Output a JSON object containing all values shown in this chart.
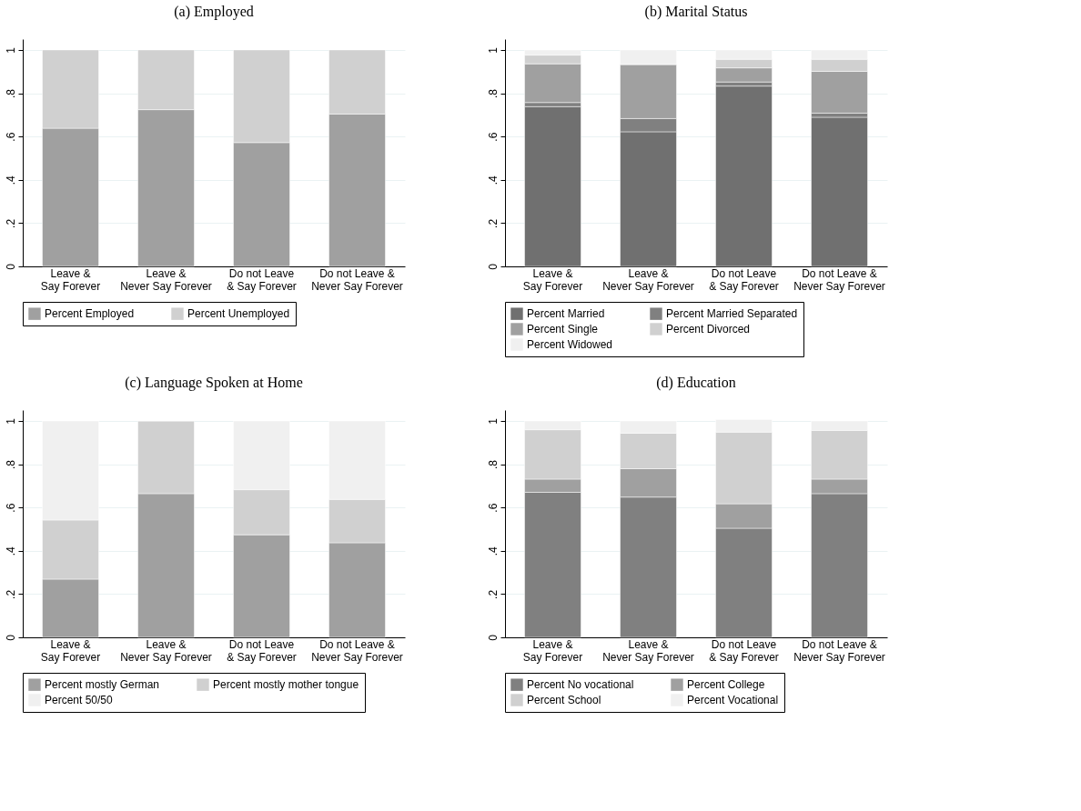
{
  "chart_data": [
    {
      "type": "bar",
      "title": "(a) Employed",
      "stacked": true,
      "categories": [
        "Leave &\nSay Forever",
        "Leave &\nNever Say Forever",
        "Do not Leave\n& Say Forever",
        "Do not Leave &\nNever Say Forever"
      ],
      "series": [
        {
          "name": "Percent Employed",
          "color": "#a0a0a0",
          "values": [
            0.638,
            0.724,
            0.572,
            0.704
          ]
        },
        {
          "name": "Percent Unemployed",
          "color": "#d0d0d0",
          "values": [
            0.362,
            0.276,
            0.428,
            0.296
          ]
        }
      ],
      "ylim": [
        0,
        1.05
      ],
      "yticks": [
        0,
        {
          "value": 0.2,
          "label": ".2"
        },
        {
          "value": 0.4,
          "label": ".4"
        },
        {
          "value": 0.6,
          "label": ".6"
        },
        {
          "value": 0.8,
          "label": ".8"
        },
        1
      ],
      "grid": "y",
      "legend": "bottom"
    },
    {
      "type": "bar",
      "title": "(b) Marital Status",
      "stacked": true,
      "categories": [
        "Leave &\nSay Forever",
        "Leave &\nNever Say Forever",
        "Do not Leave\n& Say Forever",
        "Do not Leave &\nNever Say Forever"
      ],
      "series": [
        {
          "name": "Percent Married",
          "color": "#707070",
          "values": [
            0.738,
            0.622,
            0.833,
            0.689
          ]
        },
        {
          "name": "Percent Married Separated",
          "color": "#808080",
          "values": [
            0.019,
            0.061,
            0.019,
            0.019
          ]
        },
        {
          "name": "Percent Single",
          "color": "#a0a0a0",
          "values": [
            0.179,
            0.25,
            0.065,
            0.193
          ]
        },
        {
          "name": "Percent Divorced",
          "color": "#d0d0d0",
          "values": [
            0.04,
            0,
            0.04,
            0.056
          ]
        },
        {
          "name": "Percent Widowed",
          "color": "#f0f0f0",
          "values": [
            0.024,
            0.067,
            0.043,
            0.043
          ]
        }
      ],
      "ylim": [
        0,
        1.05
      ],
      "yticks": [
        0,
        {
          "value": 0.2,
          "label": ".2"
        },
        {
          "value": 0.4,
          "label": ".4"
        },
        {
          "value": 0.6,
          "label": ".6"
        },
        {
          "value": 0.8,
          "label": ".8"
        },
        1
      ],
      "grid": "y",
      "legend": "bottom"
    },
    {
      "type": "bar",
      "title": "(c) Language Spoken at Home",
      "stacked": true,
      "categories": [
        "Leave &\nSay Forever",
        "Leave &\nNever Say Forever",
        "Do not Leave\n& Say Forever",
        "Do not Leave &\nNever Say Forever"
      ],
      "series": [
        {
          "name": "Percent mostly German",
          "color": "#a0a0a0",
          "values": [
            0.269,
            0.664,
            0.474,
            0.437
          ]
        },
        {
          "name": "Percent mostly mother tongue",
          "color": "#d0d0d0",
          "values": [
            0.273,
            0.336,
            0.208,
            0.2
          ]
        },
        {
          "name": "Percent 50/50",
          "color": "#f0f0f0",
          "values": [
            0.458,
            0,
            0.318,
            0.363
          ]
        }
      ],
      "ylim": [
        0,
        1.05
      ],
      "yticks": [
        0,
        {
          "value": 0.2,
          "label": ".2"
        },
        {
          "value": 0.4,
          "label": ".4"
        },
        {
          "value": 0.6,
          "label": ".6"
        },
        {
          "value": 0.8,
          "label": ".8"
        },
        1
      ],
      "grid": "y",
      "legend": "bottom"
    },
    {
      "type": "bar",
      "title": "(d) Education",
      "stacked": true,
      "categories": [
        "Leave &\nSay Forever",
        "Leave &\nNever Say Forever",
        "Do not Leave\n& Say Forever",
        "Do not Leave &\nNever Say Forever"
      ],
      "series": [
        {
          "name": "Percent No vocational",
          "color": "#808080",
          "values": [
            0.67,
            0.648,
            0.504,
            0.664
          ]
        },
        {
          "name": "Percent College",
          "color": "#a0a0a0",
          "values": [
            0.061,
            0.131,
            0.113,
            0.067
          ]
        },
        {
          "name": "Percent School",
          "color": "#d0d0d0",
          "values": [
            0.228,
            0.164,
            0.331,
            0.225
          ]
        },
        {
          "name": "Percent Vocational",
          "color": "#f0f0f0",
          "values": [
            0.041,
            0.057,
            0.058,
            0.044
          ]
        }
      ],
      "ylim": [
        0,
        1.05
      ],
      "yticks": [
        0,
        {
          "value": 0.2,
          "label": ".2"
        },
        {
          "value": 0.4,
          "label": ".4"
        },
        {
          "value": 0.6,
          "label": ".6"
        },
        {
          "value": 0.8,
          "label": ".8"
        },
        1
      ],
      "grid": "y",
      "legend": "bottom"
    }
  ]
}
